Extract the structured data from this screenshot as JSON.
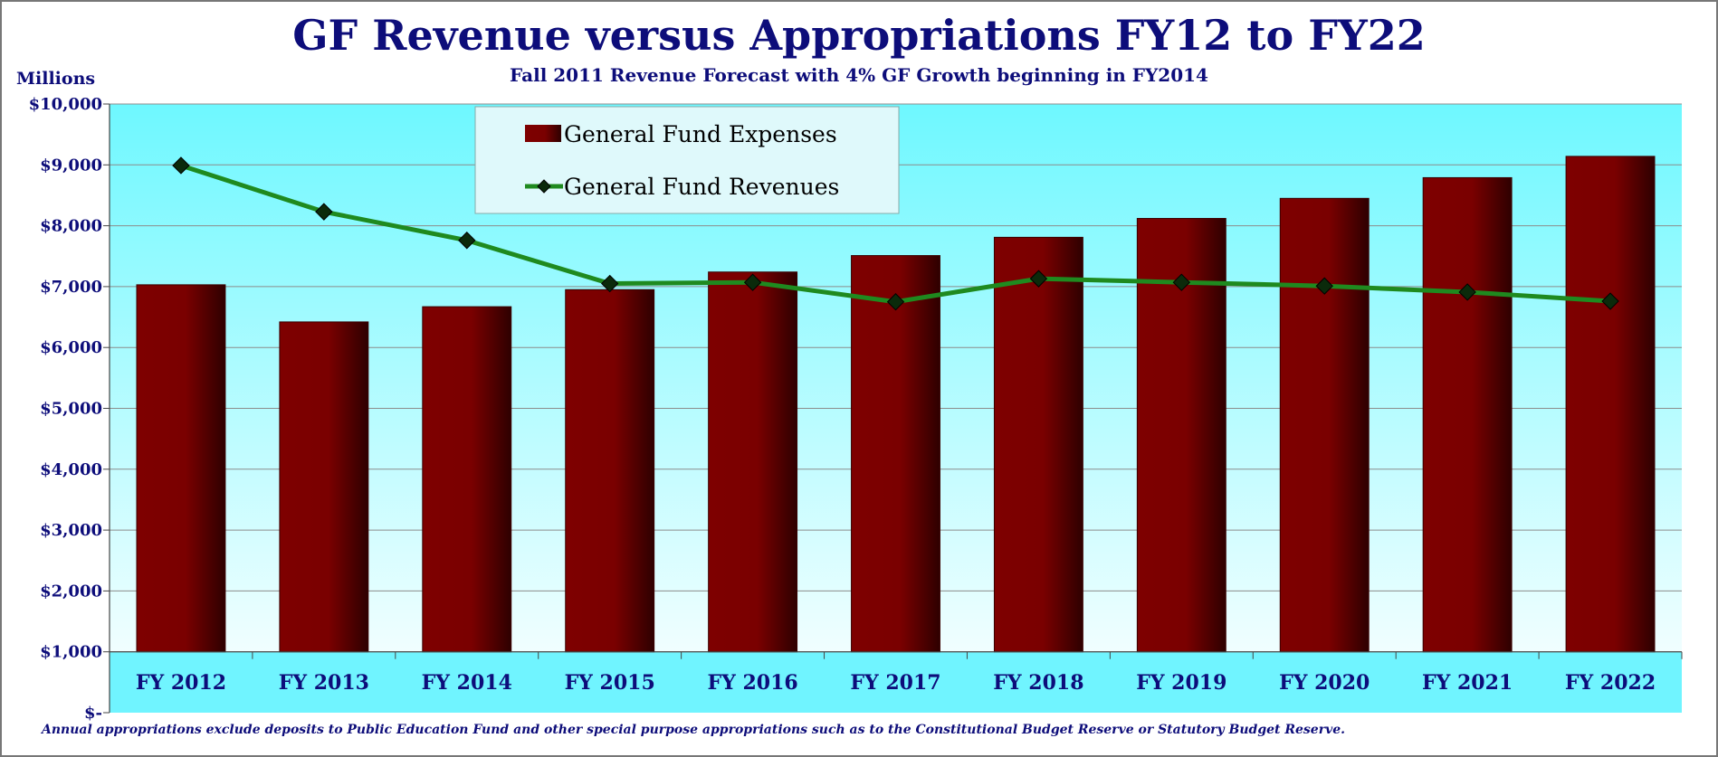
{
  "chart_data": {
    "type": "bar",
    "title": "GF Revenue versus Appropriations FY12 to FY22",
    "subtitle": "Fall 2011 Revenue Forecast with 4% GF Growth beginning in FY2014",
    "ylabel": "Millions",
    "xlabel": "",
    "ylim": [
      0,
      10000
    ],
    "y_ticks": [
      0,
      1000,
      2000,
      3000,
      4000,
      5000,
      6000,
      7000,
      8000,
      9000,
      10000
    ],
    "y_tick_labels": [
      "$-",
      "$1,000",
      "$2,000",
      "$3,000",
      "$4,000",
      "$5,000",
      "$6,000",
      "$7,000",
      "$8,000",
      "$9,000",
      "$10,000"
    ],
    "categories": [
      "FY 2012",
      "FY 2013",
      "FY 2014",
      "FY 2015",
      "FY 2016",
      "FY 2017",
      "FY 2018",
      "FY 2019",
      "FY 2020",
      "FY 2021",
      "FY 2022"
    ],
    "series": [
      {
        "name": "General Fund Expenses",
        "type": "bar",
        "color": "#7a0000",
        "values": [
          7030,
          6420,
          6670,
          6950,
          7240,
          7510,
          7810,
          8120,
          8450,
          8790,
          9140
        ]
      },
      {
        "name": "General Fund Revenues",
        "type": "line",
        "color": "#1f8a1f",
        "marker": "diamond",
        "values": [
          8990,
          8230,
          7760,
          7050,
          7070,
          6750,
          7130,
          7070,
          7010,
          6910,
          6760
        ]
      }
    ],
    "grid": true,
    "legend": "top-left"
  },
  "footnote": "Annual appropriations exclude deposits to Public Education Fund and other special purpose appropriations such as to the Constitutional Budget Reserve or Statutory Budget Reserve.",
  "colors": {
    "plot_top": "#6ef8ff",
    "plot_bottom": "#ffffff",
    "axis_band": "#70f4ff",
    "text": "#0d0d7a"
  }
}
